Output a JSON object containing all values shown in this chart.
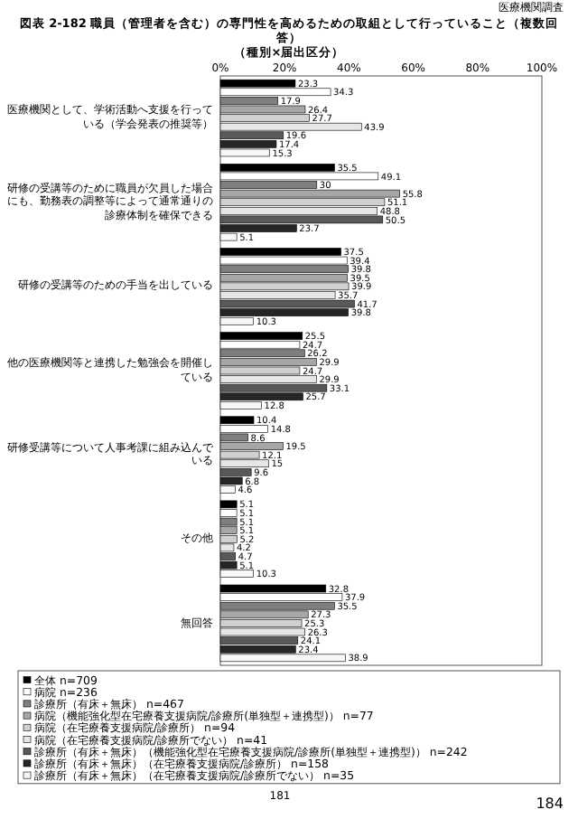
{
  "chart_data": {
    "type": "bar",
    "orientation": "horizontal",
    "title": "図表 2-182 職員（管理者を含む）の専門性を高めるための取組として行っていること（複数回答）",
    "subtitle": "（種別×届出区分）",
    "annotations": [
      "医療機関調査",
      "181",
      "184"
    ],
    "categories": [
      "医療機関として、学術活動へ支援を行っている（学会発表の推奨等）",
      "研修の受講等のために職員が欠員した場合にも、勤務表の調整等によって通常通りの診療体制を確保できる",
      "研修の受講等のための手当を出している",
      "他の医療機関等と連携した勉強会を開催している",
      "研修受講等について人事考課に組み込んでいる",
      "その他",
      "無回答"
    ],
    "series": [
      {
        "name": "全体 n=709",
        "color": "#000000",
        "values": [
          23.3,
          35.5,
          37.5,
          25.5,
          10.4,
          5.1,
          32.8
        ]
      },
      {
        "name": "病院 n=236",
        "color": "#ffffff",
        "values": [
          34.3,
          49.1,
          39.4,
          24.7,
          14.8,
          5.1,
          37.9
        ]
      },
      {
        "name": "診療所（有床＋無床） n=467",
        "color": "#7f7f7f",
        "values": [
          17.9,
          30.0,
          39.8,
          26.2,
          8.6,
          5.1,
          35.5
        ]
      },
      {
        "name": "病院（機能強化型在宅療養支援病院/診療所(単独型＋連携型)） n=77",
        "color": "#a6a6a6",
        "values": [
          26.4,
          55.8,
          39.5,
          29.9,
          19.5,
          5.1,
          27.3
        ]
      },
      {
        "name": "病院（在宅療養支援病院/診療所） n=94",
        "color": "#d0d0d0",
        "values": [
          27.7,
          51.1,
          39.9,
          24.7,
          12.1,
          5.2,
          25.3
        ]
      },
      {
        "name": "病院（在宅療養支援病院/診療所でない） n=41",
        "color": "#e6e6e6",
        "values": [
          43.9,
          48.8,
          35.7,
          29.9,
          15.0,
          4.2,
          26.3
        ]
      },
      {
        "name": "診療所（有床＋無床）（機能強化型在宅療養支援病院/診療所(単独型＋連携型)） n=242",
        "color": "#595959",
        "values": [
          19.6,
          50.5,
          41.7,
          33.1,
          9.6,
          4.7,
          24.1
        ]
      },
      {
        "name": "診療所（有床＋無床）（在宅療養支援病院/診療所） n=158",
        "color": "#262626",
        "values": [
          17.4,
          23.7,
          39.8,
          25.7,
          6.8,
          5.1,
          23.4
        ]
      },
      {
        "name": "診療所（有床＋無床）（在宅療養支援病院/診療所でない） n=35",
        "color": "#f7f7f7",
        "values": [
          15.3,
          5.1,
          10.3,
          12.8,
          4.6,
          10.3,
          38.9
        ]
      }
    ],
    "xlim": [
      0,
      100
    ],
    "xticks": [
      {
        "value": 0,
        "label": "0%"
      },
      {
        "value": 20,
        "label": "20%"
      },
      {
        "value": 40,
        "label": "40%"
      },
      {
        "value": 60,
        "label": "60%"
      },
      {
        "value": 80,
        "label": "80%"
      },
      {
        "value": 100,
        "label": "100%"
      }
    ],
    "data_labels": true,
    "legend": "bottom"
  }
}
